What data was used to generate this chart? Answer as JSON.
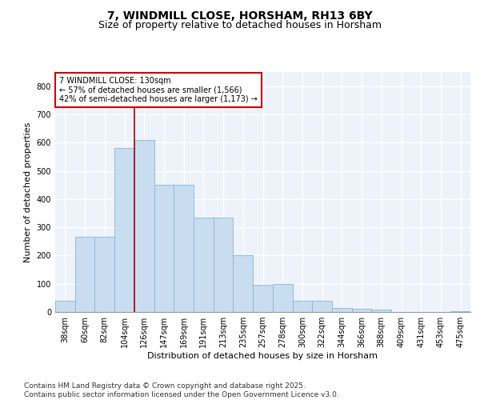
{
  "title": "7, WINDMILL CLOSE, HORSHAM, RH13 6BY",
  "subtitle": "Size of property relative to detached houses in Horsham",
  "xlabel": "Distribution of detached houses by size in Horsham",
  "ylabel": "Number of detached properties",
  "categories": [
    "38sqm",
    "60sqm",
    "82sqm",
    "104sqm",
    "126sqm",
    "147sqm",
    "169sqm",
    "191sqm",
    "213sqm",
    "235sqm",
    "257sqm",
    "278sqm",
    "300sqm",
    "322sqm",
    "344sqm",
    "366sqm",
    "388sqm",
    "409sqm",
    "431sqm",
    "453sqm",
    "475sqm"
  ],
  "values": [
    40,
    265,
    265,
    580,
    610,
    450,
    450,
    335,
    335,
    200,
    95,
    100,
    40,
    40,
    15,
    10,
    8,
    0,
    0,
    0,
    2
  ],
  "bar_color": "#c8ddf0",
  "bar_edge_color": "#8ab4d4",
  "vline_color": "#aa0000",
  "vline_x": 3.5,
  "annotation_text": "7 WINDMILL CLOSE: 130sqm\n← 57% of detached houses are smaller (1,566)\n42% of semi-detached houses are larger (1,173) →",
  "annotation_box_color": "#cc0000",
  "background_color": "#edf2fb",
  "grid_color": "#ffffff",
  "ylim": [
    0,
    850
  ],
  "yticks": [
    0,
    100,
    200,
    300,
    400,
    500,
    600,
    700,
    800
  ],
  "footer": "Contains HM Land Registry data © Crown copyright and database right 2025.\nContains public sector information licensed under the Open Government Licence v3.0.",
  "title_fontsize": 10,
  "subtitle_fontsize": 9,
  "xlabel_fontsize": 8,
  "ylabel_fontsize": 8,
  "annot_fontsize": 7,
  "tick_fontsize": 7,
  "footer_fontsize": 6.5
}
